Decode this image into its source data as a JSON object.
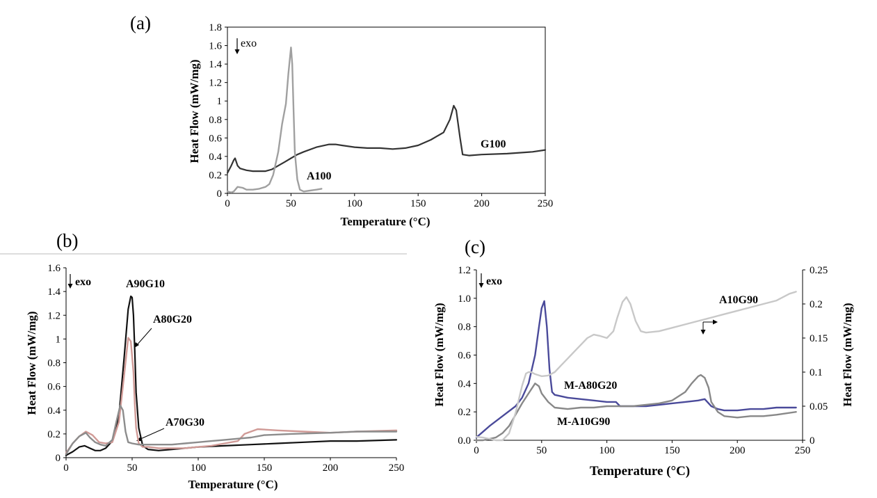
{
  "chart_data": [
    {
      "panel": "(a)",
      "type": "line",
      "xlabel": "Temperature (°C)",
      "ylabel": "Heat Flow (mW/mg)",
      "xlim": [
        0,
        250
      ],
      "ylim": [
        0,
        1.8
      ],
      "xticks": [
        0,
        50,
        100,
        150,
        200,
        250
      ],
      "yticks": [
        "0",
        "0.2",
        "0.4",
        "0.6",
        "0.8",
        "1",
        "1.2",
        "1.4",
        "1.6",
        "1.8"
      ],
      "annotation": "exo",
      "series": [
        {
          "name": "G100",
          "color": "#333333",
          "x": [
            0,
            3,
            5,
            6,
            8,
            10,
            15,
            20,
            25,
            30,
            35,
            40,
            45,
            50,
            55,
            60,
            70,
            80,
            85,
            90,
            100,
            110,
            120,
            130,
            140,
            150,
            160,
            165,
            170,
            175,
            178,
            180,
            183,
            185,
            190,
            200,
            220,
            240,
            250
          ],
          "y": [
            0.22,
            0.3,
            0.36,
            0.38,
            0.3,
            0.27,
            0.25,
            0.24,
            0.24,
            0.24,
            0.26,
            0.3,
            0.34,
            0.38,
            0.42,
            0.45,
            0.5,
            0.53,
            0.53,
            0.52,
            0.5,
            0.49,
            0.49,
            0.48,
            0.49,
            0.52,
            0.58,
            0.62,
            0.66,
            0.8,
            0.95,
            0.9,
            0.6,
            0.42,
            0.41,
            0.42,
            0.43,
            0.45,
            0.47
          ]
        },
        {
          "name": "A100",
          "color": "#a0a0a0",
          "x": [
            0,
            3,
            5,
            8,
            12,
            15,
            20,
            25,
            30,
            33,
            36,
            40,
            43,
            46,
            48,
            50,
            51,
            52,
            53,
            55,
            57,
            60,
            65,
            70,
            74
          ],
          "y": [
            0.02,
            0.01,
            0.02,
            0.07,
            0.06,
            0.04,
            0.04,
            0.05,
            0.07,
            0.1,
            0.2,
            0.45,
            0.75,
            0.97,
            1.3,
            1.58,
            1.4,
            0.9,
            0.45,
            0.15,
            0.04,
            0.02,
            0.03,
            0.04,
            0.05
          ]
        }
      ]
    },
    {
      "panel": "(b)",
      "type": "line",
      "xlabel": "Temperature (°C)",
      "ylabel": "Heat Flow (mW/mg)",
      "xlim": [
        0,
        250
      ],
      "ylim": [
        0,
        1.6
      ],
      "xticks": [
        0,
        50,
        100,
        150,
        200,
        250
      ],
      "yticks": [
        "0",
        "0.2",
        "0.4",
        "0.6",
        "0.8",
        "1",
        "1.2",
        "1.4",
        "1.6"
      ],
      "annotation": "exo",
      "series": [
        {
          "name": "A90G10",
          "color": "#111111",
          "x": [
            0,
            5,
            10,
            14,
            18,
            22,
            26,
            30,
            35,
            40,
            44,
            47,
            49,
            50,
            51,
            52,
            53,
            55,
            58,
            62,
            70,
            80,
            90,
            100,
            120,
            140,
            160,
            180,
            200,
            220,
            250
          ],
          "y": [
            0.02,
            0.05,
            0.09,
            0.1,
            0.08,
            0.06,
            0.06,
            0.08,
            0.14,
            0.35,
            0.85,
            1.25,
            1.36,
            1.35,
            1.2,
            0.9,
            0.55,
            0.25,
            0.1,
            0.07,
            0.06,
            0.07,
            0.08,
            0.09,
            0.1,
            0.11,
            0.12,
            0.13,
            0.14,
            0.14,
            0.15
          ]
        },
        {
          "name": "A80G20",
          "color": "#d09a96",
          "x": [
            0,
            5,
            10,
            15,
            20,
            25,
            30,
            35,
            40,
            44,
            47,
            49,
            51,
            52,
            53,
            55,
            58,
            62,
            70,
            80,
            90,
            100,
            110,
            120,
            130,
            135,
            145,
            160,
            180,
            200,
            220,
            250
          ],
          "y": [
            0.04,
            0.12,
            0.18,
            0.22,
            0.19,
            0.13,
            0.12,
            0.13,
            0.3,
            0.7,
            1.01,
            0.98,
            0.72,
            0.45,
            0.25,
            0.12,
            0.09,
            0.09,
            0.08,
            0.08,
            0.08,
            0.09,
            0.1,
            0.12,
            0.14,
            0.2,
            0.24,
            0.23,
            0.22,
            0.21,
            0.22,
            0.23
          ]
        },
        {
          "name": "A70G30",
          "color": "#8c8c8c",
          "x": [
            0,
            5,
            10,
            15,
            18,
            22,
            26,
            30,
            35,
            38,
            41,
            43,
            45,
            47,
            50,
            55,
            60,
            70,
            80,
            90,
            100,
            110,
            120,
            130,
            140,
            150,
            170,
            200,
            220,
            250
          ],
          "y": [
            0.03,
            0.12,
            0.18,
            0.21,
            0.17,
            0.13,
            0.11,
            0.1,
            0.15,
            0.3,
            0.44,
            0.4,
            0.22,
            0.13,
            0.12,
            0.11,
            0.11,
            0.11,
            0.11,
            0.12,
            0.13,
            0.14,
            0.15,
            0.16,
            0.17,
            0.19,
            0.2,
            0.21,
            0.22,
            0.22
          ]
        }
      ]
    },
    {
      "panel": "(c)",
      "type": "line",
      "xlabel": "Temperature (°C)",
      "ylabel": "Heat Flow (mW/mg)",
      "y2label": "Heat Flow (mW/mg)",
      "xlim": [
        0,
        250
      ],
      "ylim": [
        0,
        1.2
      ],
      "y2lim": [
        0,
        0.25
      ],
      "xticks": [
        0,
        50,
        100,
        150,
        200,
        250
      ],
      "yticks": [
        "0.0",
        "0.2",
        "0.4",
        "0.6",
        "0.8",
        "1.0",
        "1.2"
      ],
      "y2ticks": [
        "0",
        "0.05",
        "0.1",
        "0.15",
        "0.2",
        "0.25"
      ],
      "annotation": "exo",
      "series": [
        {
          "name": "M-A80G20",
          "color": "#4a4a9a",
          "axis": "left",
          "x": [
            0,
            5,
            10,
            20,
            30,
            35,
            40,
            45,
            48,
            50,
            52,
            54,
            56,
            58,
            60,
            70,
            80,
            90,
            100,
            107,
            110,
            120,
            130,
            140,
            150,
            160,
            170,
            175,
            180,
            185,
            190,
            200,
            210,
            220,
            230,
            245
          ],
          "y": [
            0.02,
            0.06,
            0.1,
            0.17,
            0.24,
            0.3,
            0.4,
            0.6,
            0.8,
            0.93,
            0.98,
            0.8,
            0.5,
            0.34,
            0.32,
            0.3,
            0.29,
            0.28,
            0.27,
            0.27,
            0.24,
            0.24,
            0.24,
            0.25,
            0.26,
            0.27,
            0.28,
            0.29,
            0.24,
            0.22,
            0.21,
            0.21,
            0.22,
            0.22,
            0.23,
            0.23
          ]
        },
        {
          "name": "M-A10G90",
          "color": "#888888",
          "axis": "left",
          "x": [
            0,
            5,
            10,
            15,
            20,
            25,
            30,
            35,
            40,
            45,
            48,
            50,
            55,
            60,
            70,
            80,
            90,
            100,
            110,
            120,
            130,
            140,
            150,
            160,
            165,
            170,
            172,
            175,
            178,
            180,
            185,
            190,
            200,
            210,
            220,
            230,
            245
          ],
          "y": [
            0.0,
            0.0,
            0.01,
            0.02,
            0.05,
            0.1,
            0.18,
            0.26,
            0.33,
            0.4,
            0.38,
            0.33,
            0.27,
            0.23,
            0.22,
            0.23,
            0.23,
            0.24,
            0.24,
            0.24,
            0.25,
            0.26,
            0.28,
            0.34,
            0.4,
            0.45,
            0.46,
            0.44,
            0.37,
            0.27,
            0.2,
            0.17,
            0.16,
            0.17,
            0.17,
            0.18,
            0.2
          ]
        },
        {
          "name": "A10G90",
          "color": "#c8c8c8",
          "axis": "right",
          "x": [
            0,
            5,
            10,
            15,
            20,
            25,
            30,
            35,
            38,
            40,
            42,
            45,
            50,
            55,
            60,
            65,
            70,
            75,
            80,
            85,
            90,
            95,
            100,
            105,
            108,
            112,
            115,
            118,
            122,
            126,
            130,
            140,
            150,
            160,
            170,
            180,
            190,
            200,
            210,
            220,
            230,
            240,
            245
          ],
          "y": [
            0.005,
            0.004,
            0.002,
            0.0,
            0.0,
            0.01,
            0.04,
            0.08,
            0.098,
            0.1,
            0.1,
            0.097,
            0.094,
            0.095,
            0.1,
            0.11,
            0.12,
            0.13,
            0.14,
            0.15,
            0.155,
            0.153,
            0.15,
            0.16,
            0.18,
            0.203,
            0.21,
            0.2,
            0.175,
            0.16,
            0.158,
            0.16,
            0.165,
            0.17,
            0.175,
            0.18,
            0.185,
            0.19,
            0.195,
            0.2,
            0.205,
            0.215,
            0.218
          ]
        }
      ]
    }
  ]
}
